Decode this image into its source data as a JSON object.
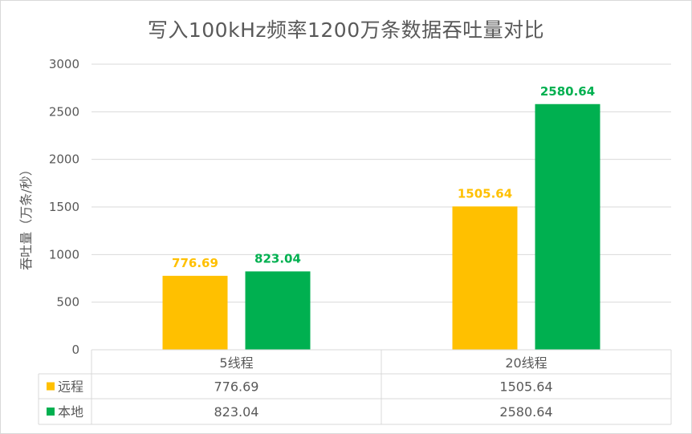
{
  "chart_data": {
    "type": "bar",
    "title": "写入100kHz频率1200万条数据吞吐量对比",
    "ylabel": "吞吐量（万条/秒）",
    "xlabel": "",
    "categories": [
      "5线程",
      "20线程"
    ],
    "series": [
      {
        "name": "远程",
        "values": [
          776.69,
          1505.64
        ],
        "color": "#FFC000"
      },
      {
        "name": "本地",
        "values": [
          823.04,
          2580.64
        ],
        "color": "#00B050"
      }
    ],
    "ylim": [
      0,
      3000
    ],
    "yticks": [
      0,
      500,
      1000,
      1500,
      2000,
      2500,
      3000
    ],
    "data_labels": {
      "远程": [
        "776.69",
        "1505.64"
      ],
      "本地": [
        "823.04",
        "2580.64"
      ]
    },
    "data_table": {
      "rows": [
        {
          "name": "远程",
          "cells": [
            "776.69",
            "1505.64"
          ]
        },
        {
          "name": "本地",
          "cells": [
            "823.04",
            "2580.64"
          ]
        }
      ]
    },
    "grid": true,
    "legend": "data-table"
  }
}
